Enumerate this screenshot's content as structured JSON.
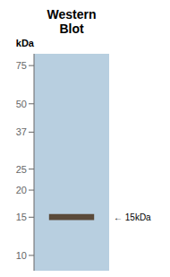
{
  "chart_data": {
    "type": "bar",
    "title": "Western Blot",
    "ylabel": "kDa",
    "categories": [
      null
    ],
    "values": [
      [
        14.55,
        15.5
      ]
    ],
    "color": "#5a4a3a",
    "ylim": [
      8.5,
      85
    ],
    "yticks": [
      10,
      15,
      20,
      25,
      37,
      50,
      75
    ],
    "log": "y",
    "grid": false,
    "tick_labels": "y",
    "annotations": [
      {
        "text": "← 15kDa",
        "y": 15.025
      }
    ]
  }
}
